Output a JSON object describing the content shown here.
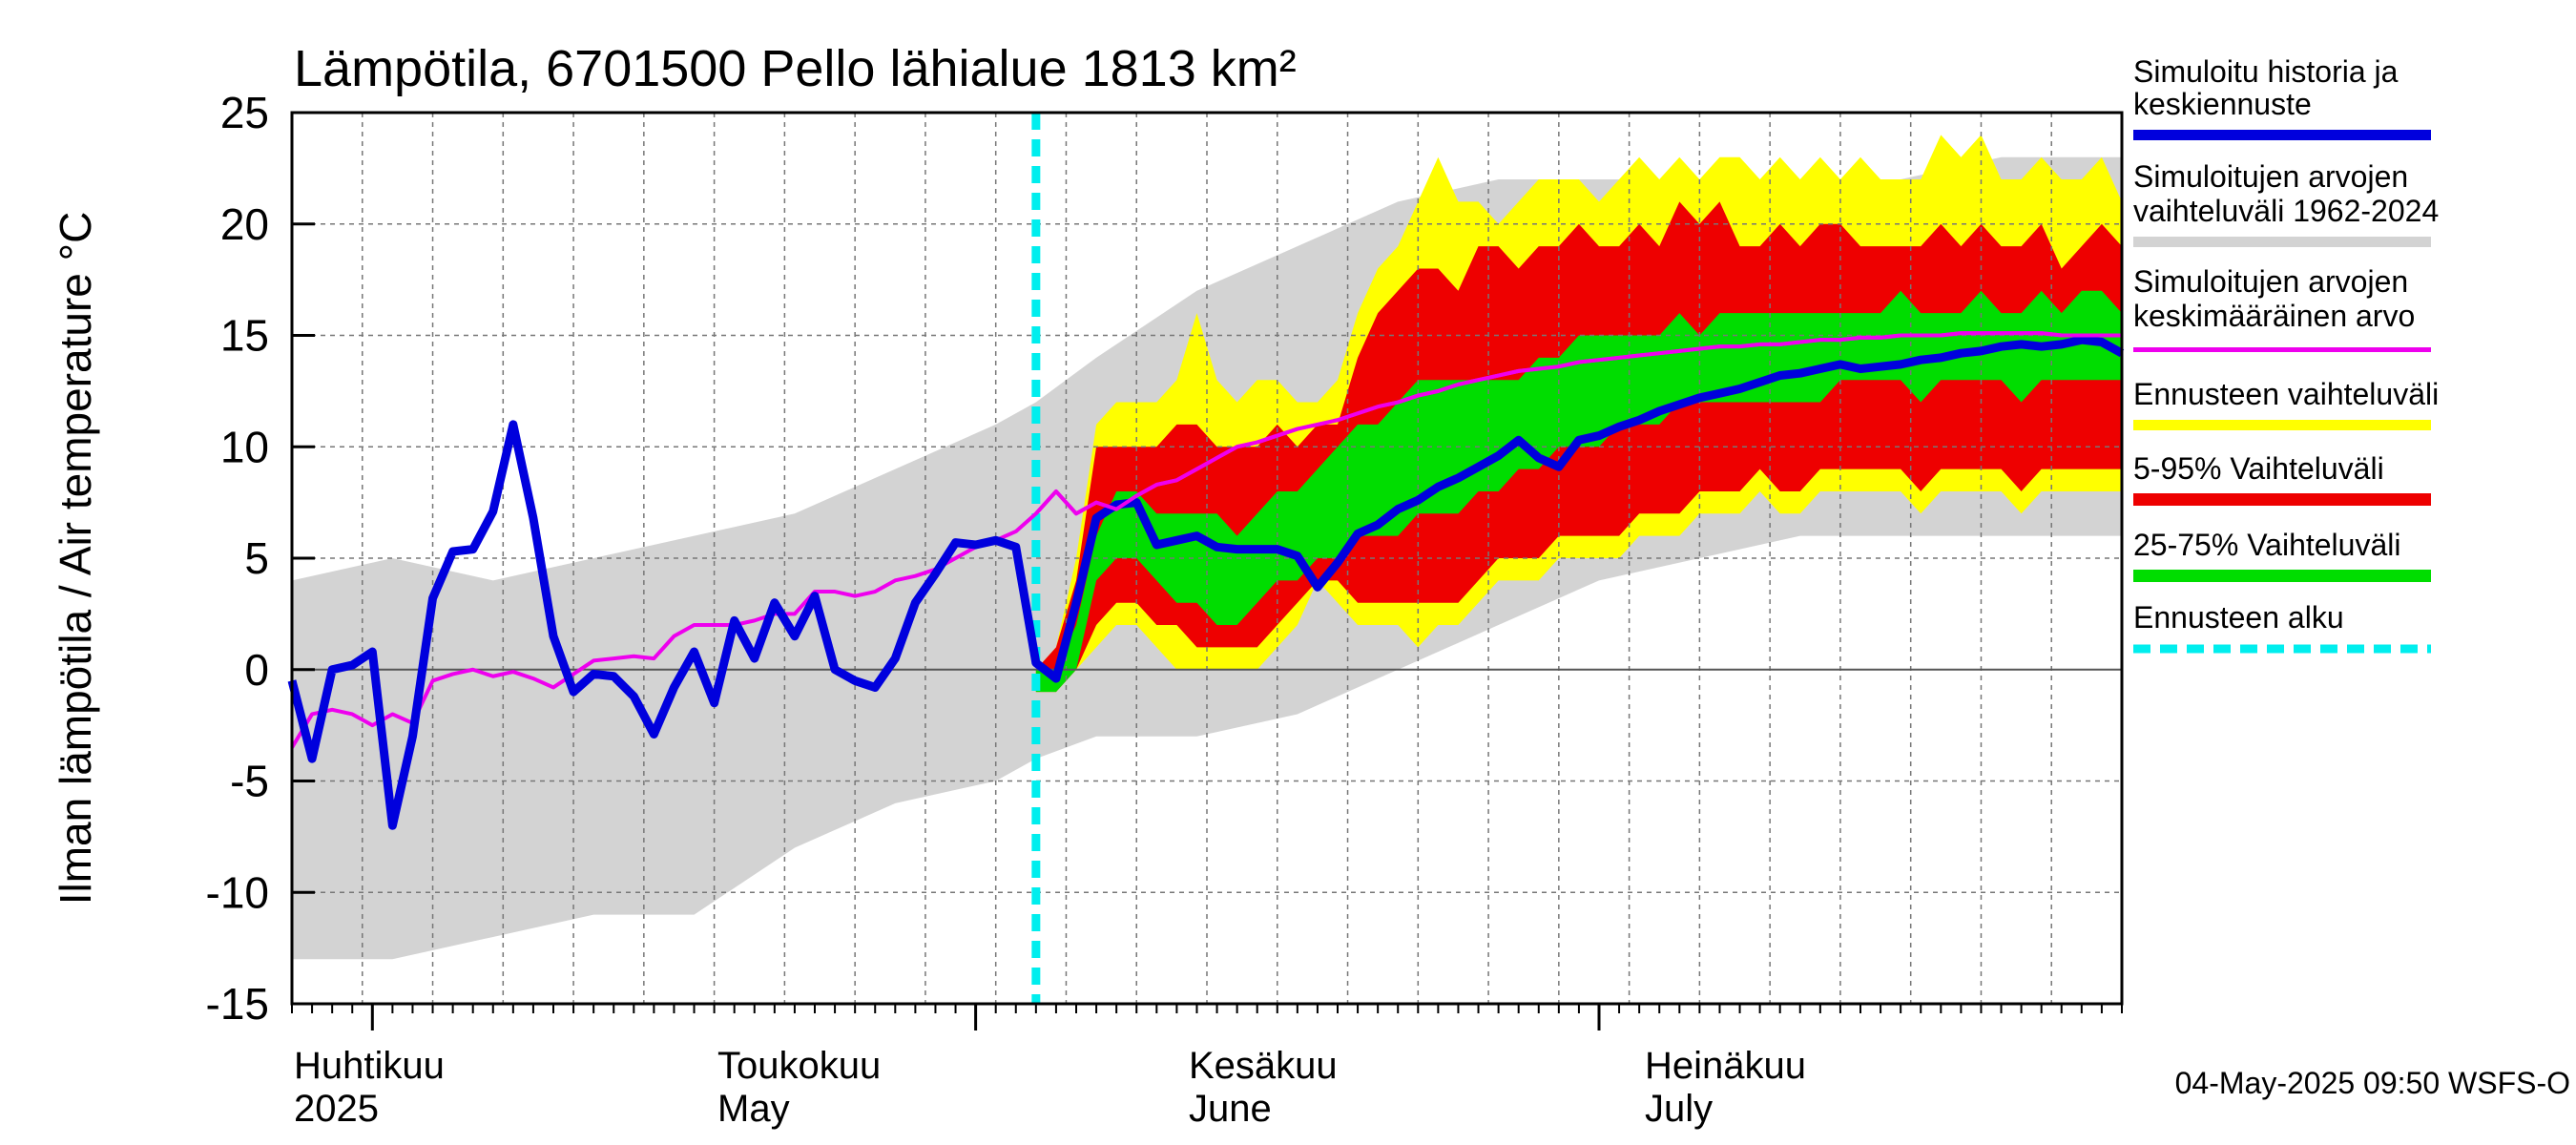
{
  "chart_data": {
    "type": "area",
    "title": "Lämpötila, 6701500 Pello lähialue 1813 km²",
    "ylabel": "Ilman lämpötila / Air temperature   °C",
    "ylim": [
      -15,
      25
    ],
    "yticks": [
      "25",
      "20",
      "15",
      "10",
      "5",
      "0",
      "-5",
      "-10",
      "-15"
    ],
    "x_unit": "day index, 0 = 28-Mar-2025 ... 91 = 27-Jul-2025",
    "xlim": [
      0,
      91
    ],
    "forecast_start": 37,
    "month_labels": [
      {
        "fi": "Huhtikuu",
        "en": "2025"
      },
      {
        "fi": "Toukokuu",
        "en": "May"
      },
      {
        "fi": "Kesäkuu",
        "en": "June"
      },
      {
        "fi": "Heinäkuu",
        "en": "July"
      }
    ],
    "timestamp": "04-May-2025 09:50 WSFS-O",
    "legend": [
      {
        "label": "Simuloitu historia ja keskiennuste",
        "color": "#0000dd"
      },
      {
        "label": "Simuloitujen arvojen vaihteluväli 1962-2024",
        "color": "#d3d3d3"
      },
      {
        "label": "Simuloitujen arvojen keskimääräinen arvo",
        "color": "#ee00ee"
      },
      {
        "label": "Ennusteen vaihteluväli",
        "color": "#ffff00"
      },
      {
        "label": "5-95% Vaihteluväli",
        "color": "#ee0000"
      },
      {
        "label": "25-75% Vaihteluväli",
        "color": "#00dd00"
      },
      {
        "label": "Ennusteen alku",
        "color": "#00eeee"
      }
    ],
    "series": [
      {
        "name": "hist_range",
        "color": "#d3d3d3",
        "x": [
          0,
          5,
          10,
          15,
          20,
          25,
          30,
          35,
          37,
          40,
          45,
          50,
          55,
          60,
          65,
          70,
          75,
          80,
          85,
          91
        ],
        "upper": [
          4,
          5,
          4,
          5,
          6,
          7,
          9,
          11,
          12,
          14,
          17,
          19,
          21,
          22,
          22,
          22,
          22,
          22,
          23,
          23
        ],
        "lower": [
          -13,
          -13,
          -12,
          -11,
          -11,
          -8,
          -6,
          -5,
          -4,
          -3,
          -3,
          -2,
          0,
          2,
          4,
          5,
          6,
          6,
          6,
          6
        ]
      },
      {
        "name": "forecast_range",
        "color": "#ffff00",
        "x": [
          37,
          38,
          39,
          40,
          41,
          42,
          43,
          44,
          45,
          46,
          47,
          48,
          49,
          50,
          51,
          52,
          53,
          54,
          55,
          56,
          57,
          58,
          59,
          60,
          61,
          62,
          63,
          64,
          65,
          66,
          67,
          68,
          69,
          70,
          71,
          72,
          73,
          74,
          75,
          76,
          77,
          78,
          79,
          80,
          81,
          82,
          83,
          84,
          85,
          86,
          87,
          88,
          89,
          90,
          91
        ],
        "upper": [
          0,
          1,
          5,
          11,
          12,
          12,
          12,
          13,
          16,
          13,
          12,
          13,
          13,
          12,
          12,
          13,
          16,
          18,
          19,
          21,
          23,
          21,
          21,
          20,
          21,
          22,
          22,
          22,
          21,
          22,
          23,
          22,
          23,
          22,
          23,
          23,
          22,
          23,
          22,
          23,
          22,
          23,
          22,
          22,
          22,
          24,
          23,
          24,
          22,
          22,
          23,
          22,
          22,
          23,
          21
        ],
        "lower": [
          -1,
          -1,
          0,
          1,
          2,
          2,
          1,
          0,
          0,
          0,
          0,
          0,
          1,
          2,
          4,
          3,
          2,
          2,
          2,
          1,
          2,
          2,
          3,
          4,
          4,
          4,
          5,
          5,
          5,
          5,
          6,
          6,
          6,
          7,
          7,
          7,
          8,
          7,
          7,
          8,
          8,
          8,
          8,
          8,
          7,
          8,
          8,
          8,
          8,
          7,
          8,
          8,
          8,
          8,
          8
        ]
      },
      {
        "name": "p05_95",
        "color": "#ee0000",
        "x": [
          37,
          38,
          39,
          40,
          41,
          42,
          43,
          44,
          45,
          46,
          47,
          48,
          49,
          50,
          51,
          52,
          53,
          54,
          55,
          56,
          57,
          58,
          59,
          60,
          61,
          62,
          63,
          64,
          65,
          66,
          67,
          68,
          69,
          70,
          71,
          72,
          73,
          74,
          75,
          76,
          77,
          78,
          79,
          80,
          81,
          82,
          83,
          84,
          85,
          86,
          87,
          88,
          89,
          90,
          91
        ],
        "upper": [
          0,
          1,
          4,
          10,
          10,
          10,
          10,
          11,
          11,
          10,
          10,
          10,
          11,
          10,
          11,
          11,
          14,
          16,
          17,
          18,
          18,
          17,
          19,
          19,
          18,
          19,
          19,
          20,
          19,
          19,
          20,
          19,
          21,
          20,
          21,
          19,
          19,
          20,
          19,
          20,
          20,
          19,
          19,
          19,
          19,
          20,
          19,
          20,
          19,
          19,
          20,
          18,
          19,
          20,
          19
        ],
        "lower": [
          -1,
          -1,
          0,
          2,
          3,
          3,
          2,
          2,
          1,
          1,
          1,
          1,
          2,
          3,
          4,
          4,
          3,
          3,
          3,
          3,
          3,
          3,
          4,
          5,
          5,
          5,
          6,
          6,
          6,
          6,
          7,
          7,
          7,
          8,
          8,
          8,
          9,
          8,
          8,
          9,
          9,
          9,
          9,
          9,
          8,
          9,
          9,
          9,
          9,
          8,
          9,
          9,
          9,
          9,
          9
        ]
      },
      {
        "name": "p25_75",
        "color": "#00dd00",
        "x": [
          37,
          38,
          39,
          40,
          41,
          42,
          43,
          44,
          45,
          46,
          47,
          48,
          49,
          50,
          51,
          52,
          53,
          54,
          55,
          56,
          57,
          58,
          59,
          60,
          61,
          62,
          63,
          64,
          65,
          66,
          67,
          68,
          69,
          70,
          71,
          72,
          73,
          74,
          75,
          76,
          77,
          78,
          79,
          80,
          81,
          82,
          83,
          84,
          85,
          86,
          87,
          88,
          89,
          90,
          91
        ],
        "upper": [
          0,
          0,
          2,
          6,
          8,
          8,
          7,
          7,
          7,
          7,
          6,
          7,
          8,
          8,
          9,
          10,
          11,
          11,
          12,
          13,
          13,
          13,
          13,
          13,
          13,
          14,
          14,
          15,
          15,
          15,
          15,
          15,
          16,
          15,
          16,
          16,
          16,
          16,
          16,
          16,
          16,
          16,
          16,
          17,
          16,
          16,
          16,
          17,
          16,
          16,
          17,
          16,
          17,
          17,
          16
        ],
        "lower": [
          -1,
          -1,
          0,
          4,
          5,
          5,
          4,
          3,
          3,
          2,
          2,
          3,
          4,
          4,
          5,
          5,
          6,
          6,
          6,
          7,
          7,
          7,
          8,
          8,
          9,
          9,
          10,
          10,
          10,
          11,
          11,
          11,
          12,
          12,
          12,
          12,
          12,
          12,
          12,
          12,
          13,
          13,
          13,
          13,
          12,
          13,
          13,
          13,
          13,
          12,
          13,
          13,
          13,
          13,
          13
        ]
      },
      {
        "name": "mean",
        "color": "#ee00ee",
        "x": [
          0,
          1,
          2,
          3,
          4,
          5,
          6,
          7,
          8,
          9,
          10,
          11,
          12,
          13,
          14,
          15,
          16,
          17,
          18,
          19,
          20,
          21,
          22,
          23,
          24,
          25,
          26,
          27,
          28,
          29,
          30,
          31,
          32,
          33,
          34,
          35,
          36,
          37,
          38,
          39,
          40,
          41,
          42,
          43,
          44,
          45,
          46,
          47,
          48,
          49,
          50,
          51,
          52,
          53,
          54,
          55,
          56,
          57,
          58,
          59,
          60,
          61,
          62,
          63,
          64,
          65,
          66,
          67,
          68,
          69,
          70,
          71,
          72,
          73,
          74,
          75,
          76,
          77,
          78,
          79,
          80,
          81,
          82,
          83,
          84,
          85,
          86,
          87,
          88,
          89,
          90,
          91
        ],
        "values": [
          -3.5,
          -2,
          -1.8,
          -2,
          -2.5,
          -2,
          -2.4,
          -0.5,
          -0.2,
          0,
          -0.3,
          -0.1,
          -0.4,
          -0.8,
          -0.2,
          0.4,
          0.5,
          0.6,
          0.5,
          1.5,
          2,
          2,
          2,
          2.2,
          2.5,
          2.5,
          3.5,
          3.5,
          3.3,
          3.5,
          4,
          4.2,
          4.5,
          5,
          5.5,
          5.8,
          6.2,
          7,
          8,
          7,
          7.5,
          7.2,
          7.8,
          8.3,
          8.5,
          9,
          9.5,
          10,
          10.2,
          10.5,
          10.8,
          11,
          11.2,
          11.5,
          11.8,
          12,
          12.3,
          12.5,
          12.8,
          13,
          13.2,
          13.4,
          13.5,
          13.6,
          13.8,
          13.9,
          14,
          14.1,
          14.2,
          14.3,
          14.4,
          14.5,
          14.5,
          14.6,
          14.6,
          14.7,
          14.8,
          14.8,
          14.9,
          14.9,
          15,
          15,
          15,
          15.1,
          15.1,
          15.1,
          15.1,
          15.1,
          15,
          15,
          15,
          15
        ],
        "values_note": "approx; legend meaning 'average of simulated values'"
      },
      {
        "name": "simulated",
        "color": "#0000dd",
        "x": [
          0,
          1,
          2,
          3,
          4,
          5,
          6,
          7,
          8,
          9,
          10,
          11,
          12,
          13,
          14,
          15,
          16,
          17,
          18,
          19,
          20,
          21,
          22,
          23,
          24,
          25,
          26,
          27,
          28,
          29,
          30,
          31,
          32,
          33,
          34,
          35,
          36,
          37,
          38,
          39,
          40,
          41,
          42,
          43,
          44,
          45,
          46,
          47,
          48,
          49,
          50,
          51,
          52,
          53,
          54,
          55,
          56,
          57,
          58,
          59,
          60,
          61,
          62,
          63,
          64,
          65,
          66,
          67,
          68,
          69,
          70,
          71,
          72,
          73,
          74,
          75,
          76,
          77,
          78,
          79,
          80,
          81,
          82,
          83,
          84,
          85,
          86,
          87,
          88,
          89,
          90,
          91
        ],
        "values": [
          -0.5,
          -4,
          0,
          0.2,
          0.8,
          -7,
          -3,
          3.2,
          5.3,
          5.4,
          7.1,
          11,
          6.8,
          1.5,
          -1,
          -0.2,
          -0.3,
          -1.2,
          -2.9,
          -0.8,
          0.8,
          -1.5,
          2.2,
          0.5,
          3,
          1.5,
          3.3,
          0,
          -0.5,
          -0.8,
          0.5,
          3,
          4.3,
          5.7,
          5.6,
          5.8,
          5.5,
          0.3,
          -0.4,
          3,
          6.8,
          7.4,
          7.5,
          5.6,
          5.8,
          6,
          5.5,
          5.4,
          5.4,
          5.4,
          5.1,
          3.7,
          4.8,
          6.1,
          6.5,
          7.2,
          7.6,
          8.2,
          8.6,
          9.1,
          9.6,
          10.3,
          9.5,
          9.1,
          10.3,
          10.5,
          10.9,
          11.2,
          11.6,
          11.9,
          12.2,
          12.4,
          12.6,
          12.9,
          13.2,
          13.3,
          13.5,
          13.7,
          13.5,
          13.6,
          13.7,
          13.9,
          14,
          14.2,
          14.3,
          14.5,
          14.6,
          14.5,
          14.6,
          14.8,
          14.7,
          14.2
        ]
      }
    ]
  }
}
